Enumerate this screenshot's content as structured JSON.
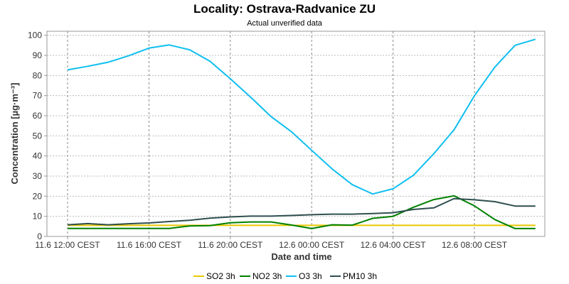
{
  "chart_data": {
    "type": "line",
    "title": "Locality: Ostrava-Radvanice ZU",
    "subtitle": "Actual unverified data",
    "xlabel": "Date and time",
    "ylabel": "Concentration [µg·m⁻³]",
    "ylim": [
      0,
      102
    ],
    "y_ticks": [
      0,
      10,
      20,
      30,
      40,
      50,
      60,
      70,
      80,
      90,
      100
    ],
    "x": [
      "11.6 12:00",
      "11.6 13:00",
      "11.6 14:00",
      "11.6 15:00",
      "11.6 16:00",
      "11.6 17:00",
      "11.6 18:00",
      "11.6 19:00",
      "11.6 20:00",
      "11.6 21:00",
      "11.6 22:00",
      "11.6 23:00",
      "12.6 00:00",
      "12.6 01:00",
      "12.6 02:00",
      "12.6 03:00",
      "12.6 04:00",
      "12.6 05:00",
      "12.6 06:00",
      "12.6 07:00",
      "12.6 08:00",
      "12.6 09:00",
      "12.6 10:00",
      "12.6 11:00"
    ],
    "x_tick_labels": [
      {
        "x": "11.6 12:00",
        "label": "11.6 12:00 CEST"
      },
      {
        "x": "11.6 16:00",
        "label": "11.6 16:00 CEST"
      },
      {
        "x": "11.6 20:00",
        "label": "11.6 20:00 CEST"
      },
      {
        "x": "12.6 00:00",
        "label": "12.6 00:00 CEST"
      },
      {
        "x": "12.6 04:00",
        "label": "12.6 04:00 CEST"
      },
      {
        "x": "12.6 08:00",
        "label": "12.6 08:00 CEST"
      }
    ],
    "grid": true,
    "legend_position": "bottom",
    "series": [
      {
        "name": "SO2 3h",
        "color": "#e8c800",
        "values": [
          5.5,
          5.5,
          5.5,
          5.5,
          5.5,
          5.5,
          5.5,
          5.5,
          5.5,
          5.5,
          5.5,
          5.5,
          5.5,
          5.5,
          5.5,
          5.5,
          5.5,
          5.5,
          5.5,
          5.5,
          5.5,
          5.5,
          5.5,
          5.5
        ]
      },
      {
        "name": "NO2 3h",
        "color": "#008000",
        "values": [
          4,
          4,
          4,
          4,
          4,
          4,
          5.2,
          5.4,
          6.8,
          7.2,
          7.2,
          5.7,
          3.9,
          5.8,
          5.6,
          9,
          10,
          14.5,
          18.3,
          20.2,
          15.2,
          8.4,
          3.9,
          3.9
        ]
      },
      {
        "name": "O3 3h",
        "color": "#0fbff0",
        "values": [
          82.8,
          84.6,
          86.6,
          89.8,
          93.6,
          95.2,
          92.8,
          87.1,
          78.4,
          69.2,
          59.6,
          52.1,
          42.8,
          33.6,
          25.7,
          21.1,
          23.7,
          30.4,
          41.1,
          53,
          69.9,
          84.1,
          95,
          98
        ]
      },
      {
        "name": "PM10 3h",
        "color": "#2f4f4f",
        "values": [
          5.8,
          6.4,
          5.8,
          6.3,
          6.7,
          7.4,
          8,
          9.1,
          9.7,
          10.1,
          10.1,
          10.4,
          10.8,
          11.1,
          11.1,
          11.4,
          11.8,
          13.4,
          14.2,
          18.8,
          18.2,
          17.3,
          15.1,
          15.1
        ]
      }
    ]
  }
}
